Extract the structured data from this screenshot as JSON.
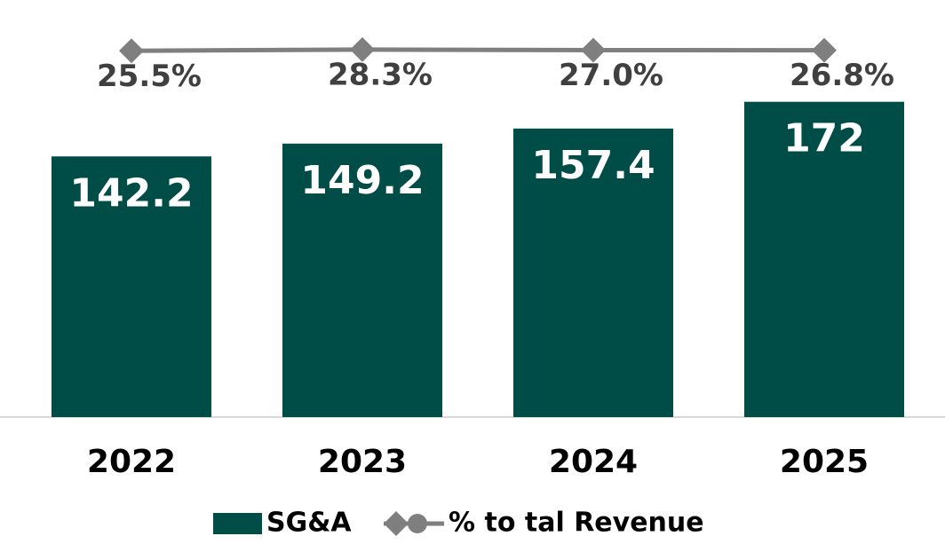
{
  "chart_data": {
    "type": "bar",
    "categories": [
      "2022",
      "2023",
      "2024",
      "2025"
    ],
    "series": [
      {
        "name": "SG&A",
        "type": "bar",
        "color": "#004d47",
        "values": [
          142.2,
          149.2,
          157.4,
          172
        ]
      },
      {
        "name": "% to tal Revenue",
        "type": "line",
        "axis": "y2",
        "color": "#7f7f7f",
        "values": [
          25.5,
          28.3,
          27.0,
          26.8
        ],
        "value_labels": [
          "25.5%",
          "28.3%",
          "27.0%",
          "26.8%"
        ]
      }
    ],
    "ylim": [
      0,
      213
    ],
    "y2lim": [
      -800,
      80
    ],
    "legend": "bottom"
  }
}
